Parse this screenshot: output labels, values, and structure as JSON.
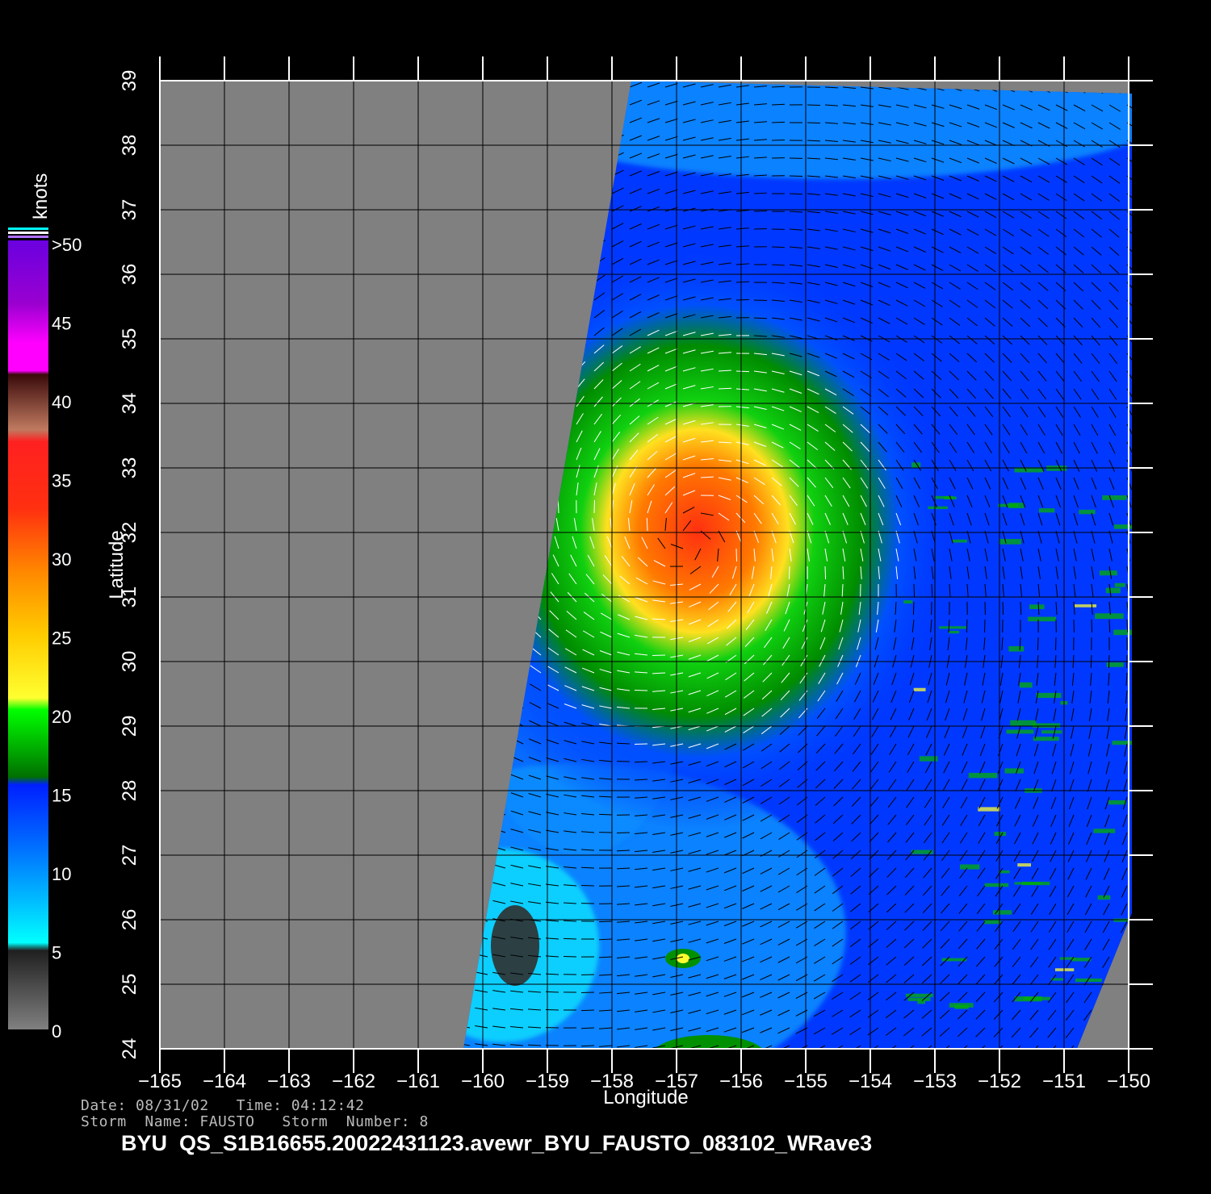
{
  "map": {
    "lon_range": [
      -165,
      -150
    ],
    "lat_range": [
      24,
      39
    ],
    "lon_ticks": [
      "−165",
      "−164",
      "−163",
      "−162",
      "−161",
      "−160",
      "−159",
      "−158",
      "−157",
      "−156",
      "−155",
      "−154",
      "−153",
      "−152",
      "−151",
      "−150"
    ],
    "lat_ticks": [
      "24",
      "25",
      "26",
      "27",
      "28",
      "29",
      "30",
      "31",
      "32",
      "33",
      "34",
      "35",
      "36",
      "37",
      "38",
      "39"
    ],
    "x_title": "Longitude",
    "y_title": "Latitude",
    "no_data_color": "#808080",
    "grid_color": "#000000",
    "swath": {
      "corners_lonlat": [
        [
          -157.7,
          39
        ],
        [
          -149.95,
          38.8
        ],
        [
          -149.95,
          26.1
        ],
        [
          -150.8,
          24
        ],
        [
          -160.3,
          24
        ]
      ],
      "storm_center_lonlat": [
        -156.8,
        31.9
      ],
      "low_wind_patch_lonlat": [
        -159.5,
        25.6
      ],
      "small_eddy_lonlat": [
        -156.9,
        25.4
      ]
    }
  },
  "colorbar": {
    "unit": "knots",
    "labels": [
      {
        "value": ">50"
      },
      {
        "value": "45"
      },
      {
        "value": "40"
      },
      {
        "value": "35"
      },
      {
        "value": "30"
      },
      {
        "value": "25"
      },
      {
        "value": "20"
      },
      {
        "value": "15"
      },
      {
        "value": "10"
      },
      {
        "value": "5"
      },
      {
        "value": "0"
      }
    ],
    "colors": {
      "c0": "#707070",
      "c5": "#00ffff",
      "c10": "#0080ff",
      "c15": "#0020ff",
      "c20": "#00ff00",
      "c25": "#ffff30",
      "c30": "#ff7800",
      "c35": "#ff2020",
      "c40": "#6a1a10",
      "c45": "#ff00ff",
      "c50": "#6a00ff"
    }
  },
  "info": {
    "date_line": "Date: 08/31/02   Time: 04:12:42",
    "storm_line": "Storm  Name: FAUSTO   Storm  Number: 8",
    "file_line": "BYU  QS_S1B16655.20022431123.avewr_BYU_FAUSTO_083102_WRave3"
  }
}
